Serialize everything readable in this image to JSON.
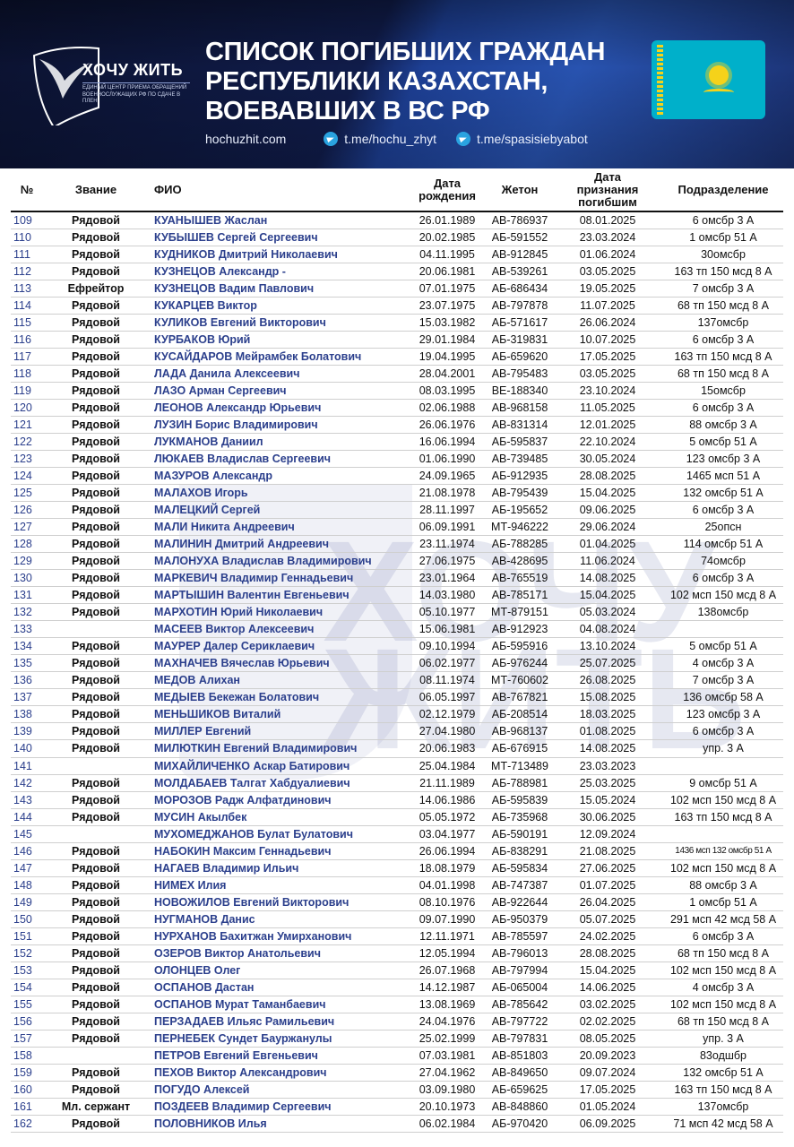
{
  "header": {
    "logo_name": "ХОЧУ ЖИТЬ",
    "logo_subtitle": "Единый центр приема обращений военнослужащих РФ по сдаче в плен",
    "title_lines": [
      "СПИСОК ПОГИБШИХ ГРАЖДАН",
      "РЕСПУБЛИКИ КАЗАХСТАН,",
      "ВОЕВАВШИХ В ВС РФ"
    ],
    "website": "hochuzhit.com",
    "telegram_1": "t.me/hochu_zhyt",
    "telegram_2": "t.me/spasisiebyabot",
    "flag": "kazakhstan-flag",
    "colors": {
      "banner": "#101c4a",
      "accent": "#2853b0",
      "flag": "#00b0ca",
      "name_text": "#2b3f8c"
    }
  },
  "watermark": "ХОЧУ ЖИТЬ",
  "table": {
    "columns": [
      "№",
      "Звание",
      "ФИО",
      "Дата рождения",
      "Жетон",
      "Дата признания погибшим",
      "Подразделение"
    ],
    "rows": [
      [
        "109",
        "Рядовой",
        "КУАНЫШЕВ Жаслан",
        "26.01.1989",
        "АВ-786937",
        "08.01.2025",
        "6 омсбр 3 А"
      ],
      [
        "110",
        "Рядовой",
        "КУБЫШЕВ Сергей Сергеевич",
        "20.02.1985",
        "АБ-591552",
        "23.03.2024",
        "1 омсбр 51 А"
      ],
      [
        "111",
        "Рядовой",
        "КУДНИКОВ Дмитрий Николаевич",
        "04.11.1995",
        "АВ-912845",
        "01.06.2024",
        "30омсбр"
      ],
      [
        "112",
        "Рядовой",
        "КУЗНЕЦОВ Александр -",
        "20.06.1981",
        "АВ-539261",
        "03.05.2025",
        "163 тп 150 мсд 8 А"
      ],
      [
        "113",
        "Ефрейтор",
        "КУЗНЕЦОВ Вадим Павлович",
        "07.01.1975",
        "АБ-686434",
        "19.05.2025",
        "7 омсбр 3 А"
      ],
      [
        "114",
        "Рядовой",
        "КУКАРЦЕВ Виктор",
        "23.07.1975",
        "АВ-797878",
        "11.07.2025",
        "68 тп 150 мсд 8 А"
      ],
      [
        "115",
        "Рядовой",
        "КУЛИКОВ Евгений Викторович",
        "15.03.1982",
        "АБ-571617",
        "26.06.2024",
        "137омсбр"
      ],
      [
        "116",
        "Рядовой",
        "КУРБАКОВ Юрий",
        "29.01.1984",
        "АБ-319831",
        "10.07.2025",
        "6 омсбр 3 А"
      ],
      [
        "117",
        "Рядовой",
        "КУСАЙДАРОВ Мейрамбек Болатович",
        "19.04.1995",
        "АБ-659620",
        "17.05.2025",
        "163 тп 150 мсд 8 А"
      ],
      [
        "118",
        "Рядовой",
        "ЛАДА Данила Алексеевич",
        "28.04.2001",
        "АВ-795483",
        "03.05.2025",
        "68 тп 150 мсд 8 А"
      ],
      [
        "119",
        "Рядовой",
        "ЛАЗО Арман Сергеевич",
        "08.03.1995",
        "ВЕ-188340",
        "23.10.2024",
        "15омсбр"
      ],
      [
        "120",
        "Рядовой",
        "ЛЕОНОВ Александр Юрьевич",
        "02.06.1988",
        "АВ-968158",
        "11.05.2025",
        "6 омсбр 3 А"
      ],
      [
        "121",
        "Рядовой",
        "ЛУЗИН Борис Владимирович",
        "26.06.1976",
        "АВ-831314",
        "12.01.2025",
        "88 омсбр 3 А"
      ],
      [
        "122",
        "Рядовой",
        "ЛУКМАНОВ Даниил",
        "16.06.1994",
        "АБ-595837",
        "22.10.2024",
        "5 омсбр 51 А"
      ],
      [
        "123",
        "Рядовой",
        "ЛЮКАЕВ Владислав Сергеевич",
        "01.06.1990",
        "АВ-739485",
        "30.05.2024",
        "123 омсбр 3 А"
      ],
      [
        "124",
        "Рядовой",
        "МАЗУРОВ Александр",
        "24.09.1965",
        "АБ-912935",
        "28.08.2025",
        "1465 мсп 51 А"
      ],
      [
        "125",
        "Рядовой",
        "МАЛАХОВ Игорь",
        "21.08.1978",
        "АВ-795439",
        "15.04.2025",
        "132 омсбр 51 А"
      ],
      [
        "126",
        "Рядовой",
        "МАЛЕЦКИЙ Сергей",
        "28.11.1997",
        "АБ-195652",
        "09.06.2025",
        "6 омсбр 3 А"
      ],
      [
        "127",
        "Рядовой",
        "МАЛИ Никита Андреевич",
        "06.09.1991",
        "МТ-946222",
        "29.06.2024",
        "25опсн"
      ],
      [
        "128",
        "Рядовой",
        "МАЛИНИН Дмитрий Андреевич",
        "23.11.1974",
        "АБ-788285",
        "01.04.2025",
        "114 омсбр 51 А"
      ],
      [
        "129",
        "Рядовой",
        "МАЛОНУХА Владислав Владимирович",
        "27.06.1975",
        "АВ-428695",
        "11.06.2024",
        "74омсбр"
      ],
      [
        "130",
        "Рядовой",
        "МАРКЕВИЧ Владимир Геннадьевич",
        "23.01.1964",
        "АВ-765519",
        "14.08.2025",
        "6 омсбр 3 А"
      ],
      [
        "131",
        "Рядовой",
        "МАРТЫШИН Валентин Евгеньевич",
        "14.03.1980",
        "АВ-785171",
        "15.04.2025",
        "102 мсп 150 мсд 8 А"
      ],
      [
        "132",
        "Рядовой",
        "МАРХОТИН Юрий Николаевич",
        "05.10.1977",
        "МТ-879151",
        "05.03.2024",
        "138омсбр"
      ],
      [
        "133",
        "",
        "МАСЕЕВ Виктор Алексеевич",
        "15.06.1981",
        "АВ-912923",
        "04.08.2024",
        ""
      ],
      [
        "134",
        "Рядовой",
        "МАУРЕР Далер Сериклаевич",
        "09.10.1994",
        "АБ-595916",
        "13.10.2024",
        "5 омсбр 51 А"
      ],
      [
        "135",
        "Рядовой",
        "МАХНАЧЕВ Вячеслав Юрьевич",
        "06.02.1977",
        "АБ-976244",
        "25.07.2025",
        "4 омсбр 3 А"
      ],
      [
        "136",
        "Рядовой",
        "МЕДОВ Алихан",
        "08.11.1974",
        "МТ-760602",
        "26.08.2025",
        "7 омсбр 3 А"
      ],
      [
        "137",
        "Рядовой",
        "МЕДЫЕВ Бекежан Болатович",
        "06.05.1997",
        "АВ-767821",
        "15.08.2025",
        "136 омсбр 58 А"
      ],
      [
        "138",
        "Рядовой",
        "МЕНЬШИКОВ Виталий",
        "02.12.1979",
        "АБ-208514",
        "18.03.2025",
        "123 омсбр 3 А"
      ],
      [
        "139",
        "Рядовой",
        "МИЛЛЕР Евгений",
        "27.04.1980",
        "АВ-968137",
        "01.08.2025",
        "6 омсбр 3 А"
      ],
      [
        "140",
        "Рядовой",
        "МИЛЮТКИН Евгений Владимирович",
        "20.06.1983",
        "АБ-676915",
        "14.08.2025",
        "упр. 3 А"
      ],
      [
        "141",
        "",
        "МИХАЙЛИЧЕНКО Аскар Батирович",
        "25.04.1984",
        "МТ-713489",
        "23.03.2023",
        ""
      ],
      [
        "142",
        "Рядовой",
        "МОЛДАБАЕВ Талгат Хабдуалиевич",
        "21.11.1989",
        "АБ-788981",
        "25.03.2025",
        "9 омсбр 51 А"
      ],
      [
        "143",
        "Рядовой",
        "МОРОЗОВ Радж Алфатдинович",
        "14.06.1986",
        "АБ-595839",
        "15.05.2024",
        "102 мсп 150 мсд 8 А"
      ],
      [
        "144",
        "Рядовой",
        "МУСИН Акылбек",
        "05.05.1972",
        "АБ-735968",
        "30.06.2025",
        "163 тп 150 мсд 8 А"
      ],
      [
        "145",
        "",
        "МУХОМЕДЖАНОВ Булат Булатович",
        "03.04.1977",
        "АБ-590191",
        "12.09.2024",
        ""
      ],
      [
        "146",
        "Рядовой",
        "НАБОКИН Максим Геннадьевич",
        "26.06.1994",
        "АБ-838291",
        "21.08.2025",
        "1436 мсп 132 омсбр 51 А"
      ],
      [
        "147",
        "Рядовой",
        "НАГАЕВ Владимир Ильич",
        "18.08.1979",
        "АБ-595834",
        "27.06.2025",
        "102 мсп 150 мсд 8 А"
      ],
      [
        "148",
        "Рядовой",
        "НИМЕХ Илия",
        "04.01.1998",
        "АВ-747387",
        "01.07.2025",
        "88 омсбр 3 А"
      ],
      [
        "149",
        "Рядовой",
        "НОВОЖИЛОВ Евгений Викторович",
        "08.10.1976",
        "АВ-922644",
        "26.04.2025",
        "1 омсбр 51 А"
      ],
      [
        "150",
        "Рядовой",
        "НУГМАНОВ Данис",
        "09.07.1990",
        "АБ-950379",
        "05.07.2025",
        "291 мсп 42 мсд 58 А"
      ],
      [
        "151",
        "Рядовой",
        "НУРХАНОВ Бахитжан Умирханович",
        "12.11.1971",
        "АВ-785597",
        "24.02.2025",
        "6 омсбр 3 А"
      ],
      [
        "152",
        "Рядовой",
        "ОЗЕРОВ Виктор Анатольевич",
        "12.05.1994",
        "АВ-796013",
        "28.08.2025",
        "68 тп 150 мсд 8 А"
      ],
      [
        "153",
        "Рядовой",
        "ОЛОНЦЕВ Олег",
        "26.07.1968",
        "АВ-797994",
        "15.04.2025",
        "102 мсп 150 мсд 8 А"
      ],
      [
        "154",
        "Рядовой",
        "ОСПАНОВ Дастан",
        "14.12.1987",
        "АБ-065004",
        "14.06.2025",
        "4 омсбр 3 А"
      ],
      [
        "155",
        "Рядовой",
        "ОСПАНОВ Мурат Таманбаевич",
        "13.08.1969",
        "АВ-785642",
        "03.02.2025",
        "102 мсп 150 мсд 8 А"
      ],
      [
        "156",
        "Рядовой",
        "ПЕРЗАДАЕВ Ильяс Рамильевич",
        "24.04.1976",
        "АВ-797722",
        "02.02.2025",
        "68 тп 150 мсд 8 А"
      ],
      [
        "157",
        "Рядовой",
        "ПЕРНЕБЕК Сундет Бауржанулы",
        "25.02.1999",
        "АВ-797831",
        "08.05.2025",
        "упр. 3 А"
      ],
      [
        "158",
        "",
        "ПЕТРОВ Евгений Евгеньевич",
        "07.03.1981",
        "АВ-851803",
        "20.09.2023",
        "83одшбр"
      ],
      [
        "159",
        "Рядовой",
        "ПЕХОВ Виктор Александрович",
        "27.04.1962",
        "АВ-849650",
        "09.07.2024",
        "132 омсбр 51 А"
      ],
      [
        "160",
        "Рядовой",
        "ПОГУДО Алексей",
        "03.09.1980",
        "АБ-659625",
        "17.05.2025",
        "163 тп 150 мсд 8 А"
      ],
      [
        "161",
        "Мл. сержант",
        "ПОЗДЕЕВ Владимир Сергеевич",
        "20.10.1973",
        "АВ-848860",
        "01.05.2024",
        "137омсбр"
      ],
      [
        "162",
        "Рядовой",
        "ПОЛОВНИКОВ Илья",
        "06.02.1984",
        "АБ-970420",
        "06.09.2025",
        "71 мсп 42 мсд 58 А"
      ]
    ]
  }
}
